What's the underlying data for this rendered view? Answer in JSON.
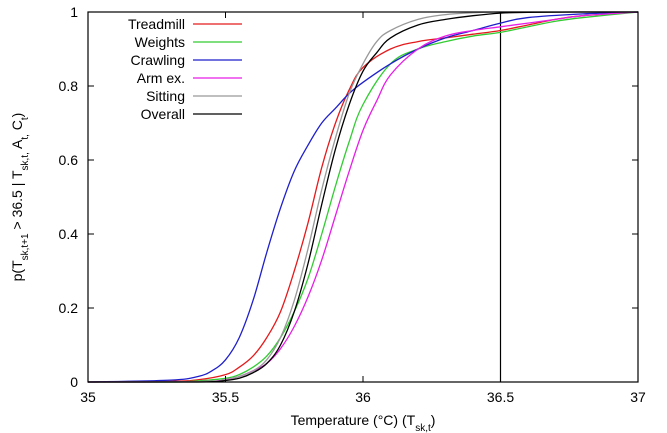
{
  "chart_data": {
    "type": "line",
    "xlabel": "Temperature (°C) (T_sk,t)",
    "ylabel": "p(T_sk,t+1 > 36.5 | T_sk,t, A_t, C_t)",
    "xlim": [
      35,
      37
    ],
    "ylim": [
      0,
      1
    ],
    "x_ticks": [
      "35",
      "35.5",
      "36",
      "36.5",
      "37"
    ],
    "y_ticks": [
      "0",
      "0.2",
      "0.4",
      "0.6",
      "0.8",
      "1"
    ],
    "grid": false,
    "legend_position": "top-left",
    "vertical_line_x": 36.5,
    "series": [
      {
        "name": "Treadmill",
        "color": "#e41a1c",
        "x": [
          35.0,
          35.3,
          35.4,
          35.5,
          35.55,
          35.6,
          35.65,
          35.7,
          35.75,
          35.8,
          35.85,
          35.9,
          35.95,
          36.0,
          36.1,
          36.2,
          36.3,
          36.4,
          36.5,
          36.6,
          36.7,
          36.8,
          37.0
        ],
        "y": [
          0.0,
          0.002,
          0.006,
          0.02,
          0.04,
          0.07,
          0.12,
          0.19,
          0.3,
          0.43,
          0.58,
          0.7,
          0.79,
          0.85,
          0.9,
          0.92,
          0.93,
          0.94,
          0.95,
          0.965,
          0.98,
          0.99,
          1.0
        ]
      },
      {
        "name": "Weights",
        "color": "#33cc33",
        "x": [
          35.0,
          35.3,
          35.4,
          35.5,
          35.55,
          35.6,
          35.65,
          35.7,
          35.75,
          35.8,
          35.85,
          35.9,
          35.95,
          36.0,
          36.1,
          36.2,
          36.3,
          36.4,
          36.5,
          36.6,
          36.7,
          36.8,
          37.0
        ],
        "y": [
          0.0,
          0.0,
          0.003,
          0.01,
          0.02,
          0.04,
          0.07,
          0.12,
          0.19,
          0.28,
          0.4,
          0.53,
          0.65,
          0.75,
          0.86,
          0.9,
          0.92,
          0.935,
          0.945,
          0.96,
          0.975,
          0.985,
          1.0
        ]
      },
      {
        "name": "Crawling",
        "color": "#1f1fcc",
        "x": [
          35.0,
          35.3,
          35.4,
          35.45,
          35.5,
          35.55,
          35.6,
          35.65,
          35.7,
          35.75,
          35.8,
          35.85,
          35.9,
          35.95,
          36.0,
          36.1,
          36.2,
          36.3,
          36.4,
          36.5,
          36.6,
          36.8,
          37.0
        ],
        "y": [
          0.0,
          0.005,
          0.015,
          0.03,
          0.06,
          0.12,
          0.22,
          0.35,
          0.47,
          0.57,
          0.64,
          0.7,
          0.74,
          0.78,
          0.81,
          0.86,
          0.9,
          0.93,
          0.95,
          0.97,
          0.985,
          0.995,
          1.0
        ]
      },
      {
        "name": "Arm ex.",
        "color": "#e61ee6",
        "x": [
          35.0,
          35.4,
          35.5,
          35.55,
          35.6,
          35.65,
          35.7,
          35.75,
          35.8,
          35.85,
          35.9,
          35.95,
          36.0,
          36.05,
          36.1,
          36.2,
          36.3,
          36.4,
          36.5,
          36.6,
          36.7,
          36.8,
          37.0
        ],
        "y": [
          0.0,
          0.001,
          0.006,
          0.015,
          0.03,
          0.05,
          0.09,
          0.15,
          0.23,
          0.33,
          0.45,
          0.57,
          0.68,
          0.76,
          0.83,
          0.9,
          0.935,
          0.95,
          0.96,
          0.97,
          0.98,
          0.99,
          1.0
        ]
      },
      {
        "name": "Sitting",
        "color": "#999999",
        "x": [
          35.0,
          35.4,
          35.5,
          35.55,
          35.6,
          35.65,
          35.7,
          35.75,
          35.8,
          35.85,
          35.9,
          35.95,
          36.0,
          36.05,
          36.1,
          36.2,
          36.3,
          36.4,
          36.5,
          36.6,
          36.8,
          37.0
        ],
        "y": [
          0.0,
          0.001,
          0.005,
          0.015,
          0.03,
          0.06,
          0.12,
          0.22,
          0.36,
          0.52,
          0.66,
          0.78,
          0.86,
          0.92,
          0.95,
          0.98,
          0.993,
          0.998,
          1.0,
          1.0,
          1.0,
          1.0
        ]
      },
      {
        "name": "Overall",
        "color": "#000000",
        "x": [
          35.0,
          35.4,
          35.5,
          35.55,
          35.6,
          35.65,
          35.7,
          35.75,
          35.8,
          35.85,
          35.9,
          35.95,
          36.0,
          36.05,
          36.1,
          36.2,
          36.3,
          36.4,
          36.5,
          36.6,
          36.8,
          37.0
        ],
        "y": [
          0.0,
          0.0,
          0.004,
          0.01,
          0.025,
          0.05,
          0.1,
          0.19,
          0.32,
          0.48,
          0.63,
          0.75,
          0.84,
          0.89,
          0.93,
          0.965,
          0.98,
          0.99,
          0.997,
          0.999,
          1.0,
          1.0
        ]
      }
    ]
  }
}
